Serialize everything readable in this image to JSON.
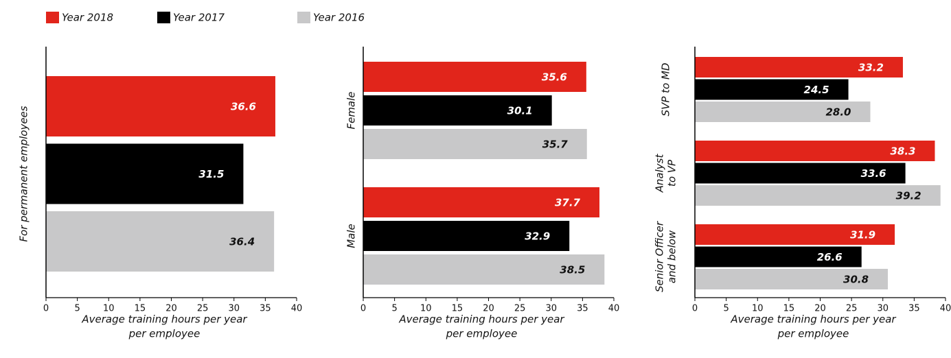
{
  "legend": [
    {
      "name": "Year 2018",
      "color": "#e1251b"
    },
    {
      "name": "Year 2017",
      "color": "#000000"
    },
    {
      "name": "Year 2016",
      "color": "#c8c8c9"
    }
  ],
  "chart_data": [
    {
      "type": "bar",
      "orientation": "horizontal",
      "categories": [
        [
          "For permanent employees"
        ]
      ],
      "series": [
        {
          "values": [
            36.6
          ],
          "value_labels": [
            "36.6"
          ]
        },
        {
          "values": [
            31.5
          ],
          "value_labels": [
            "31.5"
          ]
        },
        {
          "values": [
            36.4
          ],
          "value_labels": [
            "36.4"
          ]
        }
      ],
      "xlim": [
        0,
        40
      ],
      "xticks": [
        0,
        5,
        10,
        15,
        20,
        25,
        30,
        35,
        40
      ],
      "xlabel": [
        "Average training hours per year",
        "per employee"
      ]
    },
    {
      "type": "bar",
      "orientation": "horizontal",
      "categories": [
        [
          "Female"
        ],
        [
          "Male"
        ]
      ],
      "series": [
        {
          "values": [
            35.6,
            37.7
          ],
          "value_labels": [
            "35.6",
            "37.7"
          ]
        },
        {
          "values": [
            30.1,
            32.9
          ],
          "value_labels": [
            "30.1",
            "32.9"
          ]
        },
        {
          "values": [
            35.7,
            38.5
          ],
          "value_labels": [
            "35.7",
            "38.5"
          ]
        }
      ],
      "xlim": [
        0,
        40
      ],
      "xticks": [
        0,
        5,
        10,
        15,
        20,
        25,
        30,
        35,
        40
      ],
      "xlabel": [
        "Average training hours per year",
        "per employee"
      ]
    },
    {
      "type": "bar",
      "orientation": "horizontal",
      "categories": [
        [
          "SVP to MD"
        ],
        [
          "Analyst",
          "to VP"
        ],
        [
          "Senior Officer",
          "and below"
        ]
      ],
      "series": [
        {
          "values": [
            33.2,
            38.3,
            31.9
          ],
          "value_labels": [
            "33.2",
            "38.3",
            "31.9"
          ]
        },
        {
          "values": [
            24.5,
            33.6,
            26.6
          ],
          "value_labels": [
            "24.5",
            "33.6",
            "26.6"
          ]
        },
        {
          "values": [
            28.0,
            39.2,
            30.8
          ],
          "value_labels": [
            "28.0",
            "39.2",
            "30.8"
          ]
        }
      ],
      "xlim": [
        0,
        40
      ],
      "xticks": [
        0,
        5,
        10,
        15,
        20,
        25,
        30,
        35,
        40
      ],
      "xlabel": [
        "Average training hours per year",
        "per employee"
      ]
    }
  ]
}
